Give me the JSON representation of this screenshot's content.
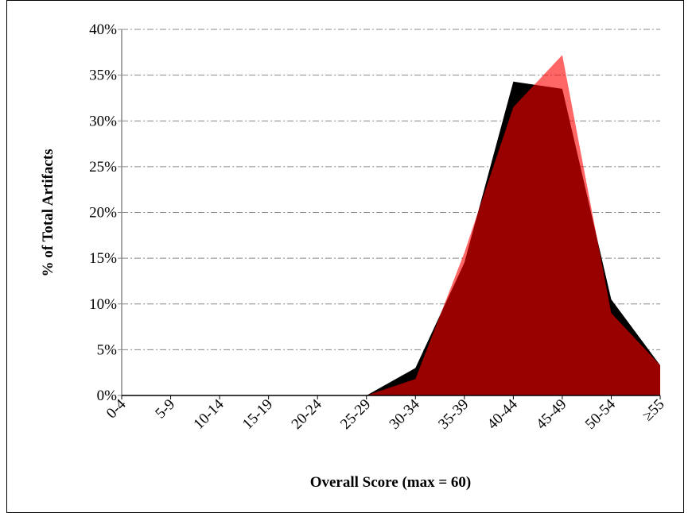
{
  "chart_data": {
    "type": "area",
    "x_label": "Overall Score (max = 60)",
    "y_label": "% of  Total Artifacts",
    "categories": [
      "0-4",
      "5-9",
      "10-14",
      "15-19",
      "20-24",
      "25-29",
      "30-34",
      "35-39",
      "40-44",
      "45-49",
      "50-54",
      "≥55"
    ],
    "series": [
      {
        "color": "#000000",
        "opacity": 1,
        "values": [
          0,
          0,
          0,
          0,
          0,
          0,
          3.0,
          14.5,
          34.3,
          33.5,
          10.5,
          3.3
        ]
      },
      {
        "color": "#ff0000",
        "opacity": 0.6,
        "values": [
          0,
          0,
          0,
          0,
          0,
          0,
          1.8,
          15.6,
          31.5,
          37.2,
          9.0,
          3.3
        ]
      }
    ],
    "ylim": [
      0,
      40
    ],
    "yticks": [
      {
        "value": 0,
        "label": "0%"
      },
      {
        "value": 5,
        "label": "5%"
      },
      {
        "value": 10,
        "label": "10%"
      },
      {
        "value": 15,
        "label": "15%"
      },
      {
        "value": 20,
        "label": "20%"
      },
      {
        "value": 25,
        "label": "25%"
      },
      {
        "value": 30,
        "label": "30%"
      },
      {
        "value": 35,
        "label": "35%"
      },
      {
        "value": 40,
        "label": "40%"
      }
    ],
    "grid": true
  }
}
